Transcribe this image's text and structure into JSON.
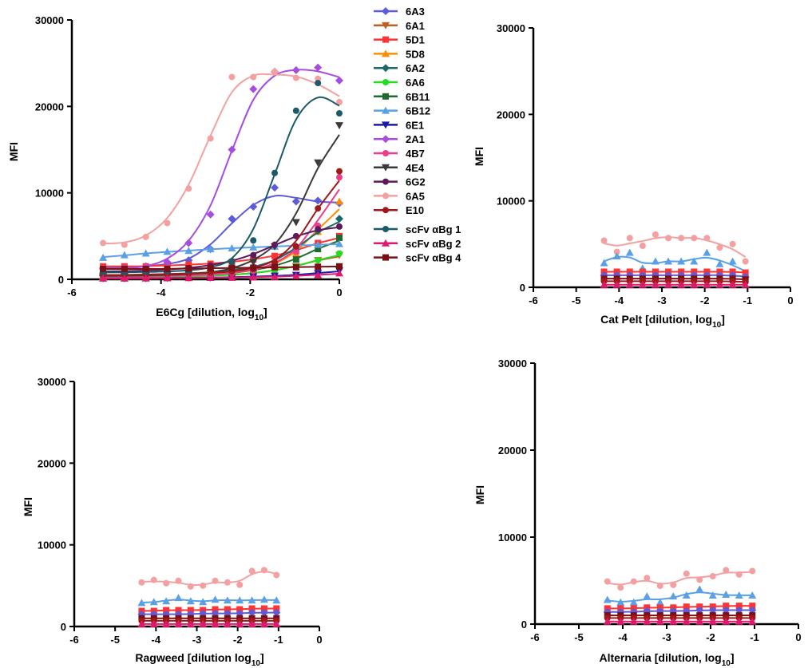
{
  "chart_data": [
    {
      "type": "scatter",
      "panel": "E6Cg",
      "xlabel": "E6Cg [dilution, log",
      "xlabel_sub": "10",
      "xlabel_suffix": "]",
      "ylabel": "MFI",
      "xlim": [
        -6,
        0
      ],
      "ylim": [
        0,
        30000
      ],
      "xticks": [
        "-6",
        "-4",
        "-2",
        "0"
      ],
      "yticks": [
        "0",
        "10000",
        "20000",
        "30000"
      ],
      "x": [
        -5.3,
        -4.82,
        -4.34,
        -3.86,
        -3.38,
        -2.89,
        -2.41,
        -1.93,
        -1.45,
        -0.97,
        -0.48,
        0
      ],
      "series": [
        {
          "name": "6A3",
          "color": "#5b5bdb",
          "marker": "diamond",
          "values": [
            1300,
            1350,
            1500,
            1700,
            2200,
            3500,
            7000,
            8400,
            10600,
            9000,
            9100,
            8800
          ]
        },
        {
          "name": "6A1",
          "color": "#c06020",
          "marker": "triangle-down",
          "values": [
            300,
            300,
            320,
            350,
            380,
            420,
            520,
            700,
            1000,
            1500,
            2200,
            2800
          ]
        },
        {
          "name": "5D1",
          "color": "#ff3333",
          "marker": "square",
          "values": [
            1500,
            1500,
            1500,
            1600,
            1700,
            1800,
            2000,
            2300,
            2700,
            3300,
            4200,
            5000
          ]
        },
        {
          "name": "5D8",
          "color": "#ff8c00",
          "marker": "triangle",
          "values": [
            300,
            300,
            350,
            400,
            450,
            550,
            700,
            1000,
            1600,
            3000,
            5500,
            9000
          ]
        },
        {
          "name": "6A2",
          "color": "#1b6a6a",
          "marker": "diamond",
          "values": [
            500,
            500,
            550,
            600,
            700,
            800,
            1000,
            1400,
            2000,
            3500,
            5600,
            7000
          ]
        },
        {
          "name": "6A6",
          "color": "#22dd22",
          "marker": "circle",
          "values": [
            200,
            200,
            250,
            300,
            350,
            400,
            500,
            700,
            1000,
            1500,
            2200,
            3000
          ]
        },
        {
          "name": "6B11",
          "color": "#1f6b2f",
          "marker": "square",
          "values": [
            400,
            400,
            450,
            500,
            550,
            650,
            800,
            1000,
            1500,
            2300,
            3500,
            4800
          ]
        },
        {
          "name": "6B12",
          "color": "#5aa0e6",
          "marker": "triangle",
          "values": [
            2500,
            2800,
            3000,
            3200,
            3300,
            3500,
            3600,
            3700,
            3800,
            3900,
            4000,
            4100
          ]
        },
        {
          "name": "6E1",
          "color": "#1a1aa8",
          "marker": "triangle-down",
          "values": [
            100,
            100,
            120,
            150,
            180,
            200,
            250,
            300,
            400,
            500,
            700,
            1000
          ]
        },
        {
          "name": "2A1",
          "color": "#a64ce0",
          "marker": "diamond",
          "values": [
            1200,
            1300,
            1400,
            2000,
            4200,
            7500,
            15000,
            22000,
            24000,
            24200,
            24500,
            23000
          ]
        },
        {
          "name": "4B7",
          "color": "#ee3c8a",
          "marker": "circle",
          "values": [
            300,
            300,
            350,
            400,
            450,
            550,
            700,
            1000,
            1700,
            3200,
            6200,
            11800
          ]
        },
        {
          "name": "4E4",
          "color": "#3a3a3a",
          "marker": "triangle-down",
          "values": [
            400,
            400,
            450,
            500,
            600,
            750,
            1200,
            2000,
            3800,
            6600,
            13500,
            17800
          ]
        },
        {
          "name": "6G2",
          "color": "#5c1a5c",
          "marker": "circle",
          "values": [
            900,
            950,
            1000,
            1100,
            1300,
            1600,
            2100,
            2800,
            4000,
            5000,
            5800,
            6100
          ]
        },
        {
          "name": "6A5",
          "color": "#f5a0a0",
          "marker": "circle",
          "values": [
            4200,
            4000,
            4900,
            6500,
            10500,
            16300,
            23400,
            23400,
            24000,
            23300,
            23200,
            20500
          ]
        },
        {
          "name": "E10",
          "color": "#a01818",
          "marker": "circle",
          "values": [
            500,
            500,
            550,
            600,
            650,
            750,
            900,
            1200,
            2000,
            3800,
            8200,
            12500
          ]
        },
        {
          "name": "scFv αBg 1",
          "color": "#1b5a66",
          "marker": "circle",
          "values": [
            800,
            800,
            850,
            900,
            1000,
            1300,
            2000,
            4500,
            12300,
            19500,
            22700,
            19200
          ]
        },
        {
          "name": "scFv αBg 2",
          "color": "#e0186e",
          "marker": "triangle",
          "values": [
            100,
            100,
            120,
            140,
            160,
            180,
            200,
            250,
            300,
            400,
            500,
            700
          ]
        },
        {
          "name": "scFv αBg 4",
          "color": "#7a0f16",
          "marker": "square",
          "values": [
            1200,
            1200,
            1200,
            1200,
            1250,
            1300,
            1300,
            1350,
            1400,
            1400,
            1450,
            1500
          ]
        }
      ]
    },
    {
      "type": "scatter",
      "panel": "Cat Pelt",
      "xlabel": "Cat Pelt [dilution, log",
      "xlabel_sub": "10",
      "xlabel_suffix": "]",
      "ylabel": "MFI",
      "xlim": [
        -6,
        0
      ],
      "ylim": [
        0,
        30000
      ],
      "xticks": [
        "-6",
        "-5",
        "-4",
        "-3",
        "-2",
        "-1",
        "0"
      ],
      "yticks": [
        "0",
        "10000",
        "20000",
        "30000"
      ],
      "x": [
        -4.35,
        -4.05,
        -3.75,
        -3.45,
        -3.15,
        -2.85,
        -2.55,
        -2.25,
        -1.95,
        -1.65,
        -1.35,
        -1.05
      ],
      "series": [
        {
          "name": "6A5",
          "color": "#f5a0a0",
          "marker": "circle",
          "values": [
            5400,
            4100,
            5700,
            4800,
            6100,
            5700,
            5700,
            5700,
            5700,
            4600,
            5000,
            3000
          ]
        },
        {
          "name": "6B12",
          "color": "#5aa0e6",
          "marker": "triangle",
          "values": [
            2800,
            3600,
            4000,
            2200,
            3000,
            3000,
            3000,
            3000,
            4000,
            2700,
            3000,
            1500
          ]
        },
        {
          "name": "5D1",
          "color": "#ff3333",
          "marker": "square",
          "values": [
            1800,
            1800,
            1800,
            1800,
            1800,
            1800,
            1800,
            1800,
            1800,
            1800,
            1800,
            1700
          ]
        },
        {
          "name": "6A3",
          "color": "#5b5bdb",
          "marker": "diamond",
          "values": [
            1400,
            1400,
            1400,
            1400,
            1400,
            1400,
            1400,
            1400,
            1400,
            1400,
            1400,
            1200
          ]
        },
        {
          "name": "scFv αBg 4",
          "color": "#7a0f16",
          "marker": "square",
          "values": [
            1000,
            1000,
            1000,
            1000,
            1000,
            1000,
            1000,
            1000,
            1000,
            1000,
            1000,
            900
          ]
        },
        {
          "name": "E10",
          "color": "#a01818",
          "marker": "circle",
          "values": [
            700,
            700,
            700,
            700,
            700,
            700,
            700,
            700,
            700,
            700,
            700,
            600
          ]
        },
        {
          "name": "scFv αBg 2",
          "color": "#e0186e",
          "marker": "triangle",
          "values": [
            300,
            300,
            300,
            300,
            300,
            300,
            300,
            300,
            300,
            300,
            300,
            300
          ]
        }
      ]
    },
    {
      "type": "scatter",
      "panel": "Ragweed",
      "xlabel": "Ragweed [dilution log",
      "xlabel_sub": "10",
      "xlabel_suffix": "]",
      "ylabel": "MFI",
      "xlim": [
        -6,
        0
      ],
      "ylim": [
        0,
        30000
      ],
      "xticks": [
        "-6",
        "-5",
        "-4",
        "-3",
        "-2",
        "-1",
        "0"
      ],
      "yticks": [
        "0",
        "10000",
        "20000",
        "30000"
      ],
      "x": [
        -4.35,
        -4.05,
        -3.75,
        -3.45,
        -3.15,
        -2.85,
        -2.55,
        -2.25,
        -1.95,
        -1.65,
        -1.35,
        -1.05
      ],
      "series": [
        {
          "name": "6A5",
          "color": "#f5a0a0",
          "marker": "circle",
          "values": [
            5400,
            5700,
            5300,
            5600,
            4900,
            5000,
            5600,
            5400,
            5100,
            6800,
            6900,
            6300
          ]
        },
        {
          "name": "6B12",
          "color": "#5aa0e6",
          "marker": "triangle",
          "values": [
            2900,
            3000,
            3100,
            3500,
            3100,
            3000,
            3300,
            3200,
            3200,
            3200,
            3300,
            3200
          ]
        },
        {
          "name": "5D1",
          "color": "#ff3333",
          "marker": "square",
          "values": [
            1900,
            1900,
            2000,
            2000,
            2000,
            2000,
            2100,
            2100,
            2100,
            2200,
            2200,
            2200
          ]
        },
        {
          "name": "6A3",
          "color": "#5b5bdb",
          "marker": "diamond",
          "values": [
            1500,
            1500,
            1500,
            1500,
            1500,
            1600,
            1600,
            1600,
            1600,
            1700,
            1700,
            1700
          ]
        },
        {
          "name": "scFv αBg 4",
          "color": "#7a0f16",
          "marker": "square",
          "values": [
            1000,
            1000,
            1000,
            1000,
            1000,
            1000,
            1000,
            1000,
            1000,
            1000,
            1000,
            1000
          ]
        },
        {
          "name": "E10",
          "color": "#a01818",
          "marker": "circle",
          "values": [
            700,
            700,
            700,
            700,
            700,
            700,
            700,
            700,
            700,
            700,
            700,
            700
          ]
        },
        {
          "name": "scFv αBg 2",
          "color": "#e0186e",
          "marker": "triangle",
          "values": [
            300,
            300,
            300,
            300,
            300,
            300,
            300,
            300,
            300,
            300,
            300,
            300
          ]
        }
      ]
    },
    {
      "type": "scatter",
      "panel": "Alternaria",
      "xlabel": "Alternaria [dilution, log",
      "xlabel_sub": "10",
      "xlabel_suffix": "]",
      "ylabel": "MFI",
      "xlim": [
        -6,
        0
      ],
      "ylim": [
        0,
        30000
      ],
      "xticks": [
        "-6",
        "-5",
        "-4",
        "-3",
        "-2",
        "-1",
        "0"
      ],
      "yticks": [
        "0",
        "10000",
        "20000",
        "30000"
      ],
      "x": [
        -4.35,
        -4.05,
        -3.75,
        -3.45,
        -3.15,
        -2.85,
        -2.55,
        -2.25,
        -1.95,
        -1.65,
        -1.35,
        -1.05
      ],
      "series": [
        {
          "name": "6A5",
          "color": "#f5a0a0",
          "marker": "circle",
          "values": [
            4900,
            4200,
            4900,
            5300,
            4400,
            4500,
            5800,
            5100,
            5500,
            6200,
            5700,
            6100
          ]
        },
        {
          "name": "6B12",
          "color": "#5aa0e6",
          "marker": "triangle",
          "values": [
            2800,
            2500,
            2500,
            3200,
            2500,
            3200,
            3300,
            4000,
            3300,
            3400,
            3300,
            3300
          ]
        },
        {
          "name": "5D1",
          "color": "#ff3333",
          "marker": "square",
          "values": [
            1800,
            1800,
            1800,
            1900,
            1900,
            1900,
            2000,
            2000,
            2000,
            2100,
            2100,
            2100
          ]
        },
        {
          "name": "6A3",
          "color": "#5b5bdb",
          "marker": "diamond",
          "values": [
            1400,
            1400,
            1400,
            1500,
            1500,
            1500,
            1500,
            1600,
            1600,
            1600,
            1600,
            1600
          ]
        },
        {
          "name": "scFv αBg 4",
          "color": "#7a0f16",
          "marker": "square",
          "values": [
            1000,
            1000,
            1000,
            1000,
            1000,
            1000,
            1000,
            1000,
            1000,
            1000,
            1000,
            1000
          ]
        },
        {
          "name": "E10",
          "color": "#a01818",
          "marker": "circle",
          "values": [
            700,
            700,
            700,
            700,
            700,
            700,
            700,
            700,
            700,
            700,
            700,
            700
          ]
        },
        {
          "name": "scFv αBg 2",
          "color": "#e0186e",
          "marker": "triangle",
          "values": [
            300,
            300,
            300,
            300,
            300,
            300,
            300,
            300,
            300,
            300,
            300,
            300
          ]
        }
      ]
    }
  ],
  "legend": {
    "placement": "top-center",
    "entries": [
      {
        "label": "6A3",
        "color": "#5b5bdb",
        "marker": "diamond"
      },
      {
        "label": "6A1",
        "color": "#c06020",
        "marker": "triangle-down"
      },
      {
        "label": "5D1",
        "color": "#ff3333",
        "marker": "square"
      },
      {
        "label": "5D8",
        "color": "#ff8c00",
        "marker": "triangle"
      },
      {
        "label": "6A2",
        "color": "#1b6a6a",
        "marker": "diamond"
      },
      {
        "label": "6A6",
        "color": "#22dd22",
        "marker": "circle"
      },
      {
        "label": "6B11",
        "color": "#1f6b2f",
        "marker": "square"
      },
      {
        "label": "6B12",
        "color": "#5aa0e6",
        "marker": "triangle"
      },
      {
        "label": "6E1",
        "color": "#1a1aa8",
        "marker": "triangle-down"
      },
      {
        "label": "2A1",
        "color": "#a64ce0",
        "marker": "diamond"
      },
      {
        "label": "4B7",
        "color": "#ee3c8a",
        "marker": "circle"
      },
      {
        "label": "4E4",
        "color": "#3a3a3a",
        "marker": "triangle-down"
      },
      {
        "label": "6G2",
        "color": "#5c1a5c",
        "marker": "circle"
      },
      {
        "label": "6A5",
        "color": "#f5a0a0",
        "marker": "circle"
      },
      {
        "label": "E10",
        "color": "#a01818",
        "marker": "circle"
      },
      {
        "label": "scFv αBg 1",
        "color": "#1b5a66",
        "marker": "circle"
      },
      {
        "label": "scFv αBg 2",
        "color": "#e0186e",
        "marker": "triangle"
      },
      {
        "label": "scFv αBg 4",
        "color": "#7a0f16",
        "marker": "square"
      }
    ]
  }
}
